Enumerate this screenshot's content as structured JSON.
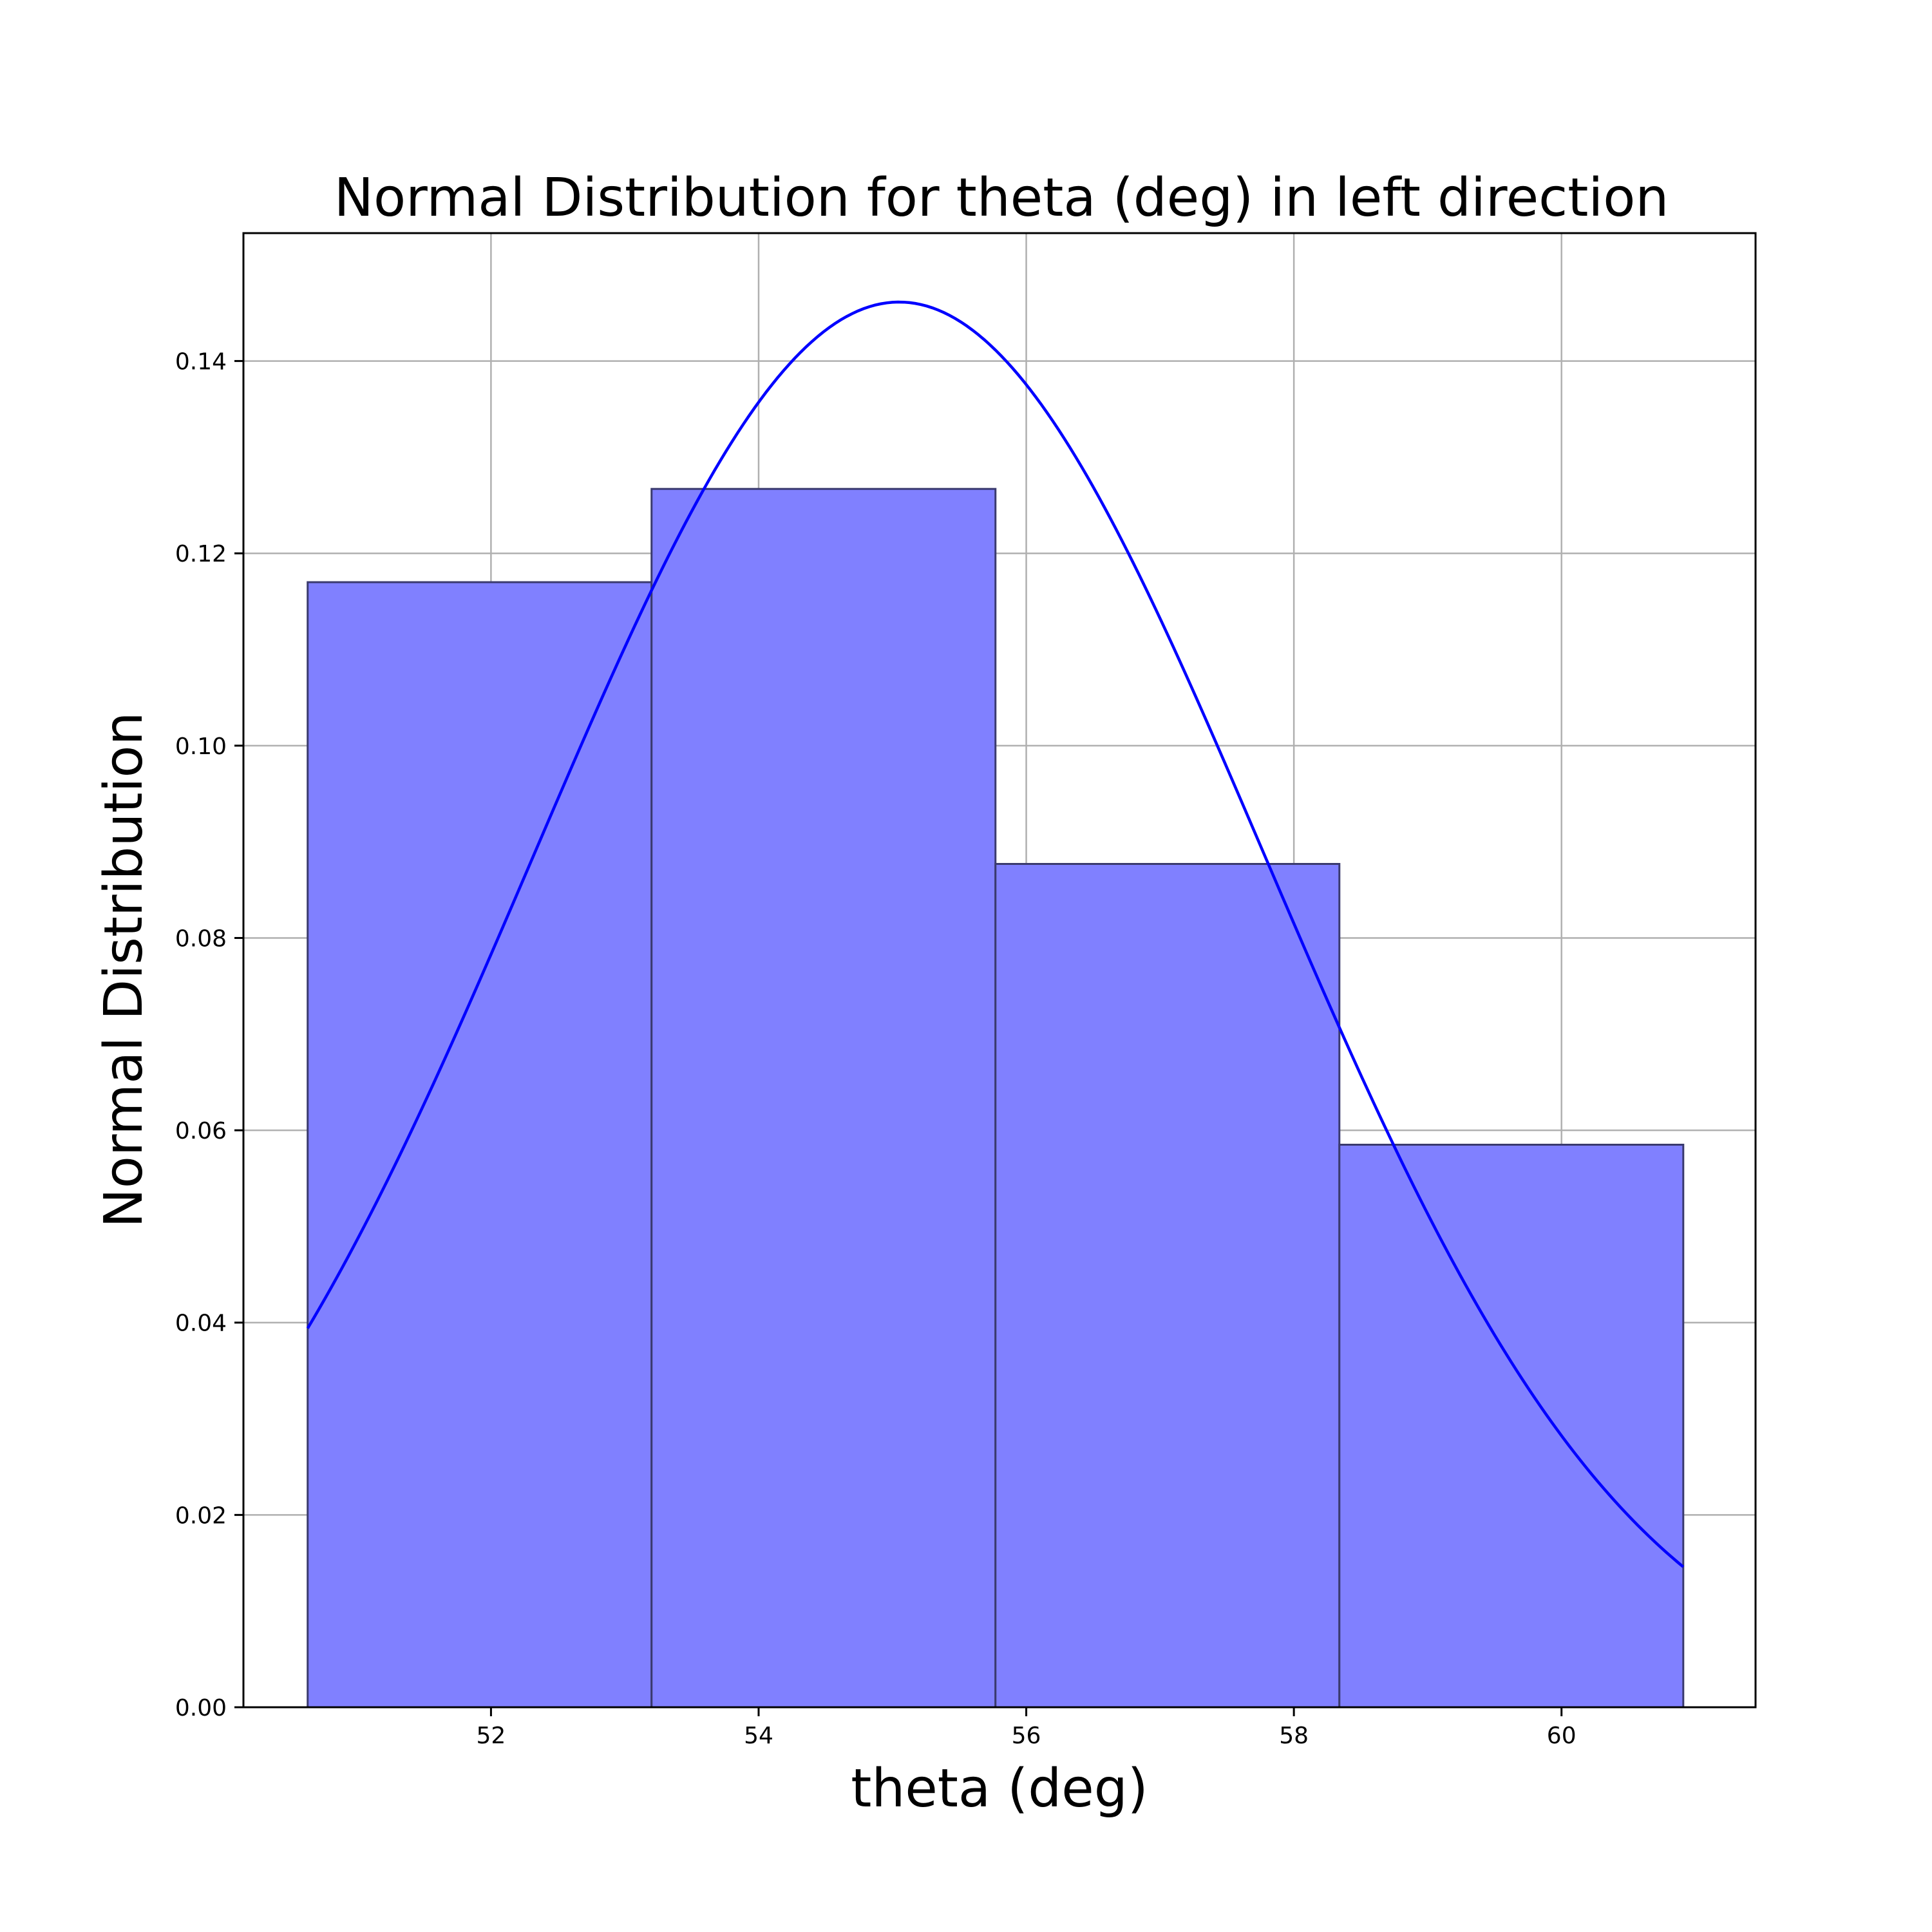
{
  "chart_data": {
    "type": "bar",
    "title": "Normal Distribution for theta (deg) in left direction",
    "xlabel": "theta (deg)",
    "ylabel": "Normal Distribution",
    "xlim": [
      50.15,
      61.45
    ],
    "ylim": [
      0,
      0.1533
    ],
    "grid": true,
    "histogram": {
      "bin_edges": [
        50.63,
        53.2,
        55.77,
        58.34,
        60.91
      ],
      "values": [
        0.117,
        0.1267,
        0.0877,
        0.0585
      ],
      "fill_color": "#8080ff",
      "edge_color": "#3a3a6e"
    },
    "curve": {
      "mean": 55.05,
      "std": 2.73,
      "x_range": [
        50.63,
        60.91
      ],
      "color": "#0000ff"
    },
    "x_ticks": [
      {
        "value": 52,
        "label": "52"
      },
      {
        "value": 54,
        "label": "54"
      },
      {
        "value": 56,
        "label": "56"
      },
      {
        "value": 58,
        "label": "58"
      },
      {
        "value": 60,
        "label": "60"
      }
    ],
    "y_ticks": [
      {
        "value": 0.0,
        "label": "0.00"
      },
      {
        "value": 0.02,
        "label": "0.02"
      },
      {
        "value": 0.04,
        "label": "0.04"
      },
      {
        "value": 0.06,
        "label": "0.06"
      },
      {
        "value": 0.08,
        "label": "0.08"
      },
      {
        "value": 0.1,
        "label": "0.10"
      },
      {
        "value": 0.12,
        "label": "0.12"
      },
      {
        "value": 0.14,
        "label": "0.14"
      }
    ]
  }
}
